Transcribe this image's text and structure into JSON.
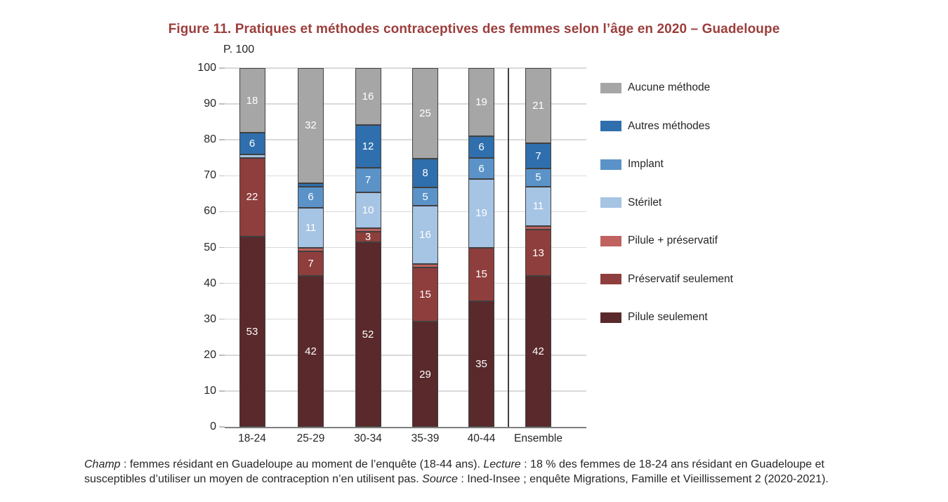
{
  "figure": {
    "title": "Figure 11. Pratiques et méthodes contraceptives des femmes selon l’âge en 2020 – Guadeloupe"
  },
  "chart_data": {
    "type": "bar",
    "stacked": true,
    "title": "Figure 11. Pratiques et méthodes contraceptives des femmes selon l’âge en 2020 – Guadeloupe",
    "unit_label": "P. 100",
    "categories": [
      "18-24",
      "25-29",
      "30-34",
      "35-39",
      "40-44",
      "Ensemble"
    ],
    "ylim": [
      0,
      100
    ],
    "ytick_step": 10,
    "grid": true,
    "legend_position": "right",
    "value_label_min": 3,
    "value_label_color": "#ffffff",
    "separator_before_last_category": true,
    "series": [
      {
        "name": "Pilule seulement",
        "color": "#5a292b",
        "values": [
          53,
          42,
          52,
          29,
          35,
          42
        ]
      },
      {
        "name": "Préservatif seulement",
        "color": "#8e3e3c",
        "values": [
          22,
          7,
          3,
          15,
          15,
          13
        ]
      },
      {
        "name": "Pilule + préservatif",
        "color": "#c06260",
        "values": [
          0,
          1,
          1,
          1,
          0,
          1
        ]
      },
      {
        "name": "Stérilet",
        "color": "#a6c4e4",
        "values": [
          1,
          11,
          10,
          16,
          19,
          11
        ]
      },
      {
        "name": "Implant",
        "color": "#5b93c9",
        "values": [
          0,
          6,
          7,
          5,
          6,
          5
        ]
      },
      {
        "name": "Autres méthodes",
        "color": "#2f6fad",
        "values": [
          6,
          1,
          12,
          8,
          6,
          7
        ]
      },
      {
        "name": "Aucune méthode",
        "color": "#a6a6a6",
        "values": [
          18,
          32,
          16,
          25,
          19,
          21
        ]
      }
    ],
    "legend_order_top_to_bottom": [
      "Aucune méthode",
      "Autres méthodes",
      "Implant",
      "Stérilet",
      "Pilule + préservatif",
      "Préservatif seulement",
      "Pilule seulement"
    ]
  },
  "footer": {
    "line1_parts": [
      {
        "text": "Champ",
        "italic": true
      },
      {
        "text": " : femmes résidant en Guadeloupe au moment de l’enquête (18-44 ans). ",
        "italic": false
      },
      {
        "text": "Lecture",
        "italic": true
      },
      {
        "text": " : 18 % des femmes de 18-24 ans résidant en Guadeloupe et",
        "italic": false
      }
    ],
    "line2_parts": [
      {
        "text": "susceptibles d’utiliser un moyen de contraception n’en utilisent pas. ",
        "italic": false
      },
      {
        "text": "Source",
        "italic": true
      },
      {
        "text": " : Ined-Insee ; enquête Migrations, Famille et Vieillissement 2 (2020-2021).",
        "italic": false
      }
    ]
  }
}
